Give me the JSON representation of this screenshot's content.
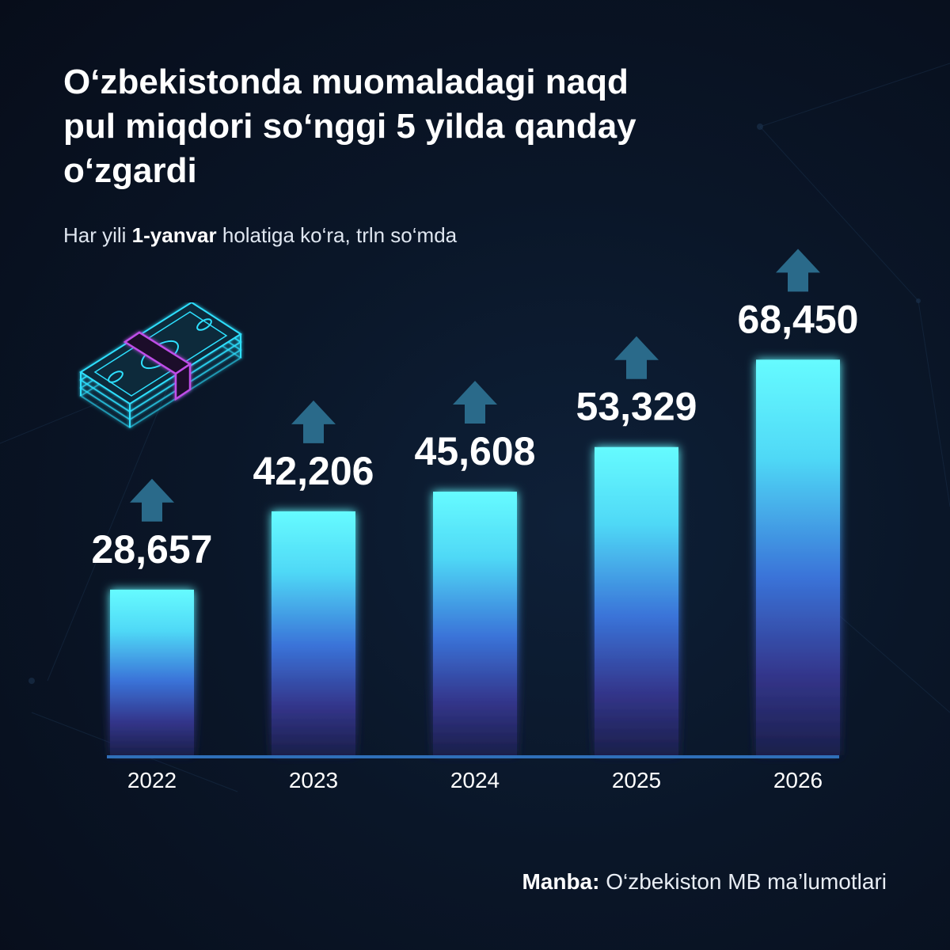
{
  "header": {
    "title_lines": [
      "O‘zbekistonda muomaladagi naqd",
      "pul miqdori so‘nggi 5 yilda qanday",
      "o‘zgardi"
    ],
    "subtitle_pre": "Har yili ",
    "subtitle_bold": "1-yanvar",
    "subtitle_post": " holatiga ko‘ra, trln so‘mda"
  },
  "chart_data": {
    "type": "bar",
    "categories": [
      "2022",
      "2023",
      "2024",
      "2025",
      "2026"
    ],
    "values": [
      28657,
      42206,
      45608,
      53329,
      68450
    ],
    "value_labels": [
      "28,657",
      "42,206",
      "45,608",
      "53,329",
      "68,450"
    ],
    "title": "O‘zbekistonda muomaladagi naqd pul miqdori so‘nggi 5 yilda qanday o‘zgardi",
    "subtitle": "Har yili 1-yanvar holatiga ko‘ra, trln so‘mda",
    "xlabel": "",
    "ylabel": "",
    "ylim": [
      0,
      80000
    ],
    "grid": false,
    "legend": "none",
    "annotation": "up-arrow-above-each-bar"
  },
  "footer": {
    "source_label": "Manba:",
    "source_text": " O‘zbekiston MB ma’lumotlari"
  },
  "icons": {
    "money": "money-stack-icon",
    "arrow": "up-arrow-icon"
  },
  "colors": {
    "background": "#0a1628",
    "bar_top": "#5ff8ff",
    "bar_mid": "#3a8fe0",
    "bar_bottom": "#2a2f78",
    "arrow": "#2a6a8a",
    "baseline": "#2f6fb8",
    "money_cyan": "#2ee0ff",
    "money_band": "#c04ee8"
  }
}
